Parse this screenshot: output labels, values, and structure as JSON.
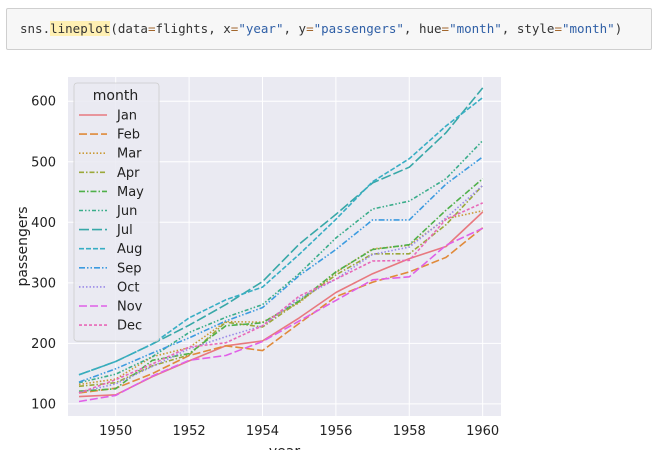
{
  "code": {
    "module": "sns",
    "dot": ".",
    "fn": "lineplot",
    "open": "(",
    "close": ")",
    "comma": ", ",
    "eq": "=",
    "data_kw": "data",
    "data_val": "flights",
    "x_kw": "x",
    "x_val": "\"year\"",
    "y_kw": "y",
    "y_val": "\"passengers\"",
    "hue_kw": "hue",
    "hue_val": "\"month\"",
    "style_kw": "style",
    "style_val": "\"month\""
  },
  "colors": {
    "plot_bg": "#eaeaf2",
    "grid": "#ffffff",
    "legend_bg": "#eaeaf2"
  },
  "chart_data": {
    "type": "line",
    "title": "",
    "xlabel": "year",
    "ylabel": "passengers",
    "xlim": [
      1948.7,
      1960.5
    ],
    "ylim": [
      80,
      640
    ],
    "xticks": [
      {
        "value": 1950,
        "label": "1950"
      },
      {
        "value": 1952,
        "label": "1952"
      },
      {
        "value": 1954,
        "label": "1954"
      },
      {
        "value": 1956,
        "label": "1956"
      },
      {
        "value": 1958,
        "label": "1958"
      },
      {
        "value": 1960,
        "label": "1960"
      }
    ],
    "yticks": [
      {
        "value": 100,
        "label": "100"
      },
      {
        "value": 200,
        "label": "200"
      },
      {
        "value": 300,
        "label": "300"
      },
      {
        "value": 400,
        "label": "400"
      },
      {
        "value": 500,
        "label": "500"
      },
      {
        "value": 600,
        "label": "600"
      }
    ],
    "grid": true,
    "legend": {
      "title": "month",
      "placement": "top-left"
    },
    "x": [
      1949,
      1950,
      1951,
      1952,
      1953,
      1954,
      1955,
      1956,
      1957,
      1958,
      1959,
      1960
    ],
    "series": [
      {
        "name": "Jan",
        "color": "#e8797f",
        "dash": "",
        "values": [
          112,
          115,
          145,
          171,
          196,
          204,
          242,
          284,
          315,
          340,
          360,
          417
        ]
      },
      {
        "name": "Feb",
        "color": "#e08a3a",
        "dash": "8,3",
        "values": [
          118,
          126,
          150,
          180,
          196,
          188,
          233,
          277,
          301,
          318,
          342,
          391
        ]
      },
      {
        "name": "Mar",
        "color": "#c99a36",
        "dash": "1.5,2",
        "values": [
          132,
          141,
          178,
          193,
          236,
          235,
          267,
          317,
          356,
          362,
          406,
          419
        ]
      },
      {
        "name": "Apr",
        "color": "#9ba83a",
        "dash": "5,2,1.5,2",
        "values": [
          129,
          135,
          163,
          181,
          235,
          227,
          269,
          313,
          348,
          348,
          396,
          461
        ]
      },
      {
        "name": "May",
        "color": "#4fb04a",
        "dash": "6,2,1.5,2",
        "values": [
          121,
          125,
          172,
          183,
          229,
          234,
          270,
          318,
          355,
          363,
          420,
          472
        ]
      },
      {
        "name": "Jun",
        "color": "#3aad8a",
        "dash": "4,2,1.5,2,1.5,2",
        "values": [
          135,
          149,
          178,
          218,
          243,
          264,
          315,
          374,
          422,
          435,
          472,
          535
        ]
      },
      {
        "name": "Jul",
        "color": "#38a8a8",
        "dash": "10,3",
        "values": [
          148,
          170,
          199,
          230,
          264,
          302,
          364,
          413,
          465,
          491,
          548,
          622
        ]
      },
      {
        "name": "Aug",
        "color": "#38aec4",
        "dash": "5,2",
        "values": [
          148,
          170,
          199,
          242,
          272,
          293,
          347,
          405,
          467,
          505,
          559,
          606
        ]
      },
      {
        "name": "Sep",
        "color": "#3c9be0",
        "dash": "6,2,1.5,2,1.5,2",
        "values": [
          136,
          158,
          184,
          209,
          237,
          259,
          312,
          355,
          404,
          404,
          463,
          508
        ]
      },
      {
        "name": "Oct",
        "color": "#9a8ae8",
        "dash": "1.5,2",
        "values": [
          119,
          133,
          162,
          191,
          211,
          229,
          274,
          306,
          347,
          359,
          407,
          461
        ]
      },
      {
        "name": "Nov",
        "color": "#e060e8",
        "dash": "8,3",
        "values": [
          104,
          114,
          146,
          172,
          180,
          203,
          237,
          271,
          305,
          310,
          362,
          390
        ]
      },
      {
        "name": "Dec",
        "color": "#e868b8",
        "dash": "3,2",
        "values": [
          118,
          140,
          166,
          194,
          201,
          229,
          278,
          306,
          336,
          337,
          405,
          432
        ]
      }
    ]
  }
}
